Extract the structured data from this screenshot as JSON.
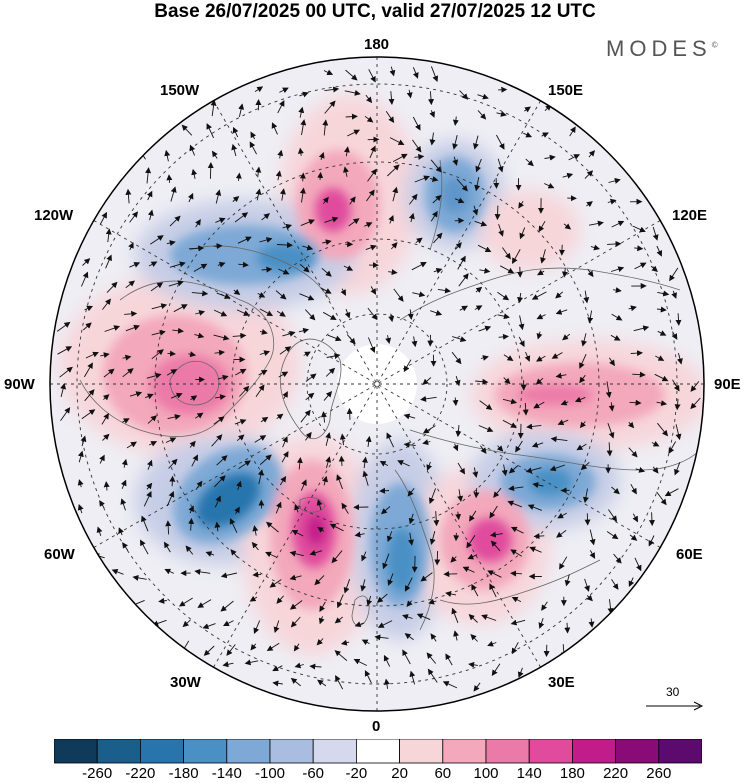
{
  "title": "Base 26/07/2025 00 UTC, valid 27/07/2025 12 UTC",
  "brand": "MODES",
  "brand_mark": "©",
  "longitude_labels": {
    "top": "180",
    "ne": "150E",
    "nw": "150W",
    "e_upper": "120E",
    "w_upper": "120W",
    "east": "90E",
    "west": "90W",
    "e_lower": "60E",
    "w_lower": "60W",
    "se": "30E",
    "sw": "30W",
    "bottom": "0"
  },
  "vector_reference": {
    "label": "30"
  },
  "colorbar": {
    "ticks": [
      "-260",
      "-220",
      "-180",
      "-140",
      "-100",
      "-60",
      "-20",
      "20",
      "60",
      "100",
      "140",
      "180",
      "220",
      "260"
    ],
    "colors": [
      "#0f3a5a",
      "#1a5e8c",
      "#2874ad",
      "#4a90c4",
      "#7ea9d6",
      "#a9bde0",
      "#d6d9ee",
      "#ffffff",
      "#f7d6da",
      "#f3a8bb",
      "#ec7aa8",
      "#e04b9d",
      "#c21c8a",
      "#8a0a78",
      "#5c0a6e"
    ]
  },
  "anomaly_fields": [
    {
      "name": "nw-pacific-positive",
      "value": 160,
      "color": "#e85fa3"
    },
    {
      "name": "north-america-positive",
      "value": 120,
      "color": "#ee8bb4"
    },
    {
      "name": "greenland-sea-negative",
      "value": -180,
      "color": "#3d86c0"
    },
    {
      "name": "north-atlantic-positive",
      "value": 220,
      "color": "#c21c8a"
    },
    {
      "name": "scandinavia-negative",
      "value": -160,
      "color": "#4a90c4"
    },
    {
      "name": "europe-positive",
      "value": 160,
      "color": "#e04b9d"
    },
    {
      "name": "siberia-positive",
      "value": 100,
      "color": "#f3a8bb"
    },
    {
      "name": "central-asia-negative",
      "value": -140,
      "color": "#4a90c4"
    },
    {
      "name": "alaska-negative",
      "value": -140,
      "color": "#4a90c4"
    },
    {
      "name": "bering-negative",
      "value": -120,
      "color": "#6d9fd0"
    }
  ]
}
